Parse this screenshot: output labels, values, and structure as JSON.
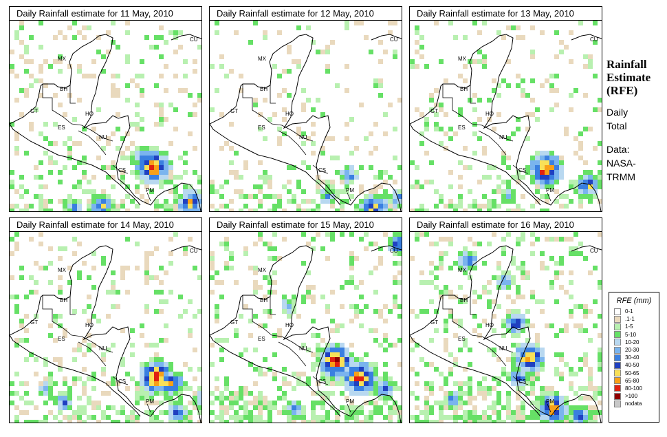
{
  "panels": [
    {
      "title": "Daily Rainfall estimate for  11 May, 2010",
      "hotspots": [
        {
          "c": 205,
          "r": 238,
          "s": 1.0
        },
        {
          "c": 190,
          "r": 225,
          "s": 0.6
        },
        {
          "c": 260,
          "r": 292,
          "s": 0.8
        },
        {
          "c": 130,
          "r": 295,
          "s": 0.7
        },
        {
          "c": 90,
          "r": 298,
          "s": 0.5
        }
      ],
      "wet": 0.35
    },
    {
      "title": "Daily Rainfall estimate for  12 May, 2010",
      "hotspots": [
        {
          "c": 235,
          "r": 298,
          "s": 0.8
        },
        {
          "c": 170,
          "r": 280,
          "s": 0.5
        },
        {
          "c": 200,
          "r": 250,
          "s": 0.5
        },
        {
          "c": 270,
          "r": 285,
          "s": 0.5
        }
      ],
      "wet": 0.3
    },
    {
      "title": "Daily Rainfall estimate for  13 May, 2010",
      "hotspots": [
        {
          "c": 195,
          "r": 242,
          "s": 1.0
        },
        {
          "c": 255,
          "r": 265,
          "s": 0.7
        },
        {
          "c": 140,
          "r": 280,
          "s": 0.4
        }
      ],
      "wet": 0.3
    },
    {
      "title": "Daily Rainfall estimate for  14 May, 2010",
      "hotspots": [
        {
          "c": 210,
          "r": 543,
          "s": 1.0
        },
        {
          "c": 230,
          "r": 553,
          "s": 0.8
        },
        {
          "c": 75,
          "r": 580,
          "s": 0.5
        },
        {
          "c": 240,
          "r": 595,
          "s": 0.6
        },
        {
          "c": 280,
          "r": 575,
          "s": 0.6
        },
        {
          "c": 50,
          "r": 560,
          "s": 0.4
        }
      ],
      "wet": 0.4
    },
    {
      "title": "Daily Rainfall estimate for  15 May, 2010",
      "hotspots": [
        {
          "c": 180,
          "r": 520,
          "s": 1.0
        },
        {
          "c": 215,
          "r": 545,
          "s": 1.0
        },
        {
          "c": 250,
          "r": 560,
          "s": 0.6
        },
        {
          "c": 270,
          "r": 350,
          "s": 0.6
        },
        {
          "c": 110,
          "r": 440,
          "s": 0.4
        },
        {
          "c": 120,
          "r": 590,
          "s": 0.5
        }
      ],
      "wet": 0.5
    },
    {
      "title": "Daily Rainfall estimate for  16 May, 2010",
      "hotspots": [
        {
          "c": 170,
          "r": 515,
          "s": 0.9
        },
        {
          "c": 150,
          "r": 465,
          "s": 0.7
        },
        {
          "c": 80,
          "r": 375,
          "s": 0.6
        },
        {
          "c": 205,
          "r": 590,
          "s": 0.9
        },
        {
          "c": 245,
          "r": 600,
          "s": 0.6
        },
        {
          "c": 155,
          "r": 545,
          "s": 0.6
        },
        {
          "c": 135,
          "r": 405,
          "s": 0.5
        },
        {
          "c": 60,
          "r": 575,
          "s": 0.5
        }
      ],
      "wet": 0.55
    }
  ],
  "country_labels": [
    "MX",
    "BH",
    "GT",
    "HO",
    "ES",
    "NU",
    "CS",
    "PM",
    "CU"
  ],
  "side": {
    "title_line1": "Rainfall",
    "title_line2": "Estimate",
    "title_line3": "(RFE)",
    "daily": "Daily",
    "total": "Total",
    "data_label": "Data:",
    "source1": "NASA-",
    "source2": "TRMM"
  },
  "legend": {
    "title": "RFE (mm)",
    "items": [
      {
        "label": "0-1",
        "color": "#ffffff"
      },
      {
        "label": ".1-1",
        "color": "#e9d9bd"
      },
      {
        "label": "1-5",
        "color": "#b8f0b0"
      },
      {
        "label": "5-10",
        "color": "#66e066"
      },
      {
        "label": "10-20",
        "color": "#b8d8f0"
      },
      {
        "label": "20-30",
        "color": "#7ab4ee"
      },
      {
        "label": "30-40",
        "color": "#3a7fe0"
      },
      {
        "label": "40-50",
        "color": "#2040c0"
      },
      {
        "label": "50-65",
        "color": "#f8e058"
      },
      {
        "label": "65-80",
        "color": "#f8a018"
      },
      {
        "label": "80-100",
        "color": "#e02010"
      },
      {
        "label": ">100",
        "color": "#900000"
      },
      {
        "label": "nodata",
        "color": "#c8c8c8"
      }
    ]
  }
}
